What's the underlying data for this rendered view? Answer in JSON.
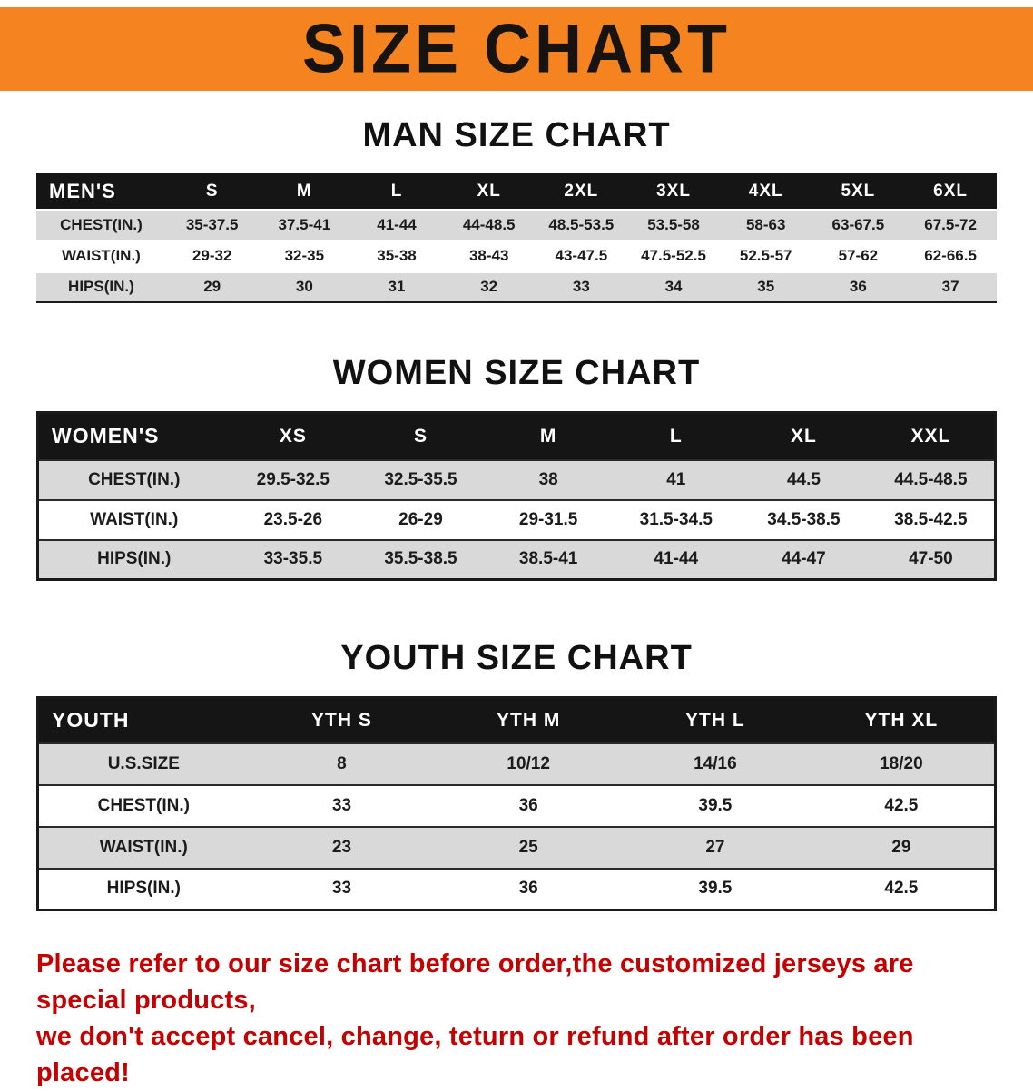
{
  "banner": {
    "title": "SIZE CHART"
  },
  "colors": {
    "banner_orange": "#f5831f",
    "header_black": "#151515",
    "stripe_gray": "#d9d9d9",
    "disclaimer_red": "#c40000"
  },
  "sections": [
    {
      "heading": "MAN SIZE CHART",
      "table": {
        "header": [
          "MEN'S",
          "S",
          "M",
          "L",
          "XL",
          "2XL",
          "3XL",
          "4XL",
          "5XL",
          "6XL"
        ],
        "rows": [
          [
            "CHEST(IN.)",
            "35-37.5",
            "37.5-41",
            "41-44",
            "44-48.5",
            "48.5-53.5",
            "53.5-58",
            "58-63",
            "63-67.5",
            "67.5-72"
          ],
          [
            "WAIST(IN.)",
            "29-32",
            "32-35",
            "35-38",
            "38-43",
            "43-47.5",
            "47.5-52.5",
            "52.5-57",
            "57-62",
            "62-66.5"
          ],
          [
            "HIPS(IN.)",
            "29",
            "30",
            "31",
            "32",
            "33",
            "34",
            "35",
            "36",
            "37"
          ]
        ]
      }
    },
    {
      "heading": "WOMEN SIZE CHART",
      "table": {
        "header": [
          "WOMEN'S",
          "XS",
          "S",
          "M",
          "L",
          "XL",
          "XXL"
        ],
        "rows": [
          [
            "CHEST(IN.)",
            "29.5-32.5",
            "32.5-35.5",
            "38",
            "41",
            "44.5",
            "44.5-48.5"
          ],
          [
            "WAIST(IN.)",
            "23.5-26",
            "26-29",
            "29-31.5",
            "31.5-34.5",
            "34.5-38.5",
            "38.5-42.5"
          ],
          [
            "HIPS(IN.)",
            "33-35.5",
            "35.5-38.5",
            "38.5-41",
            "41-44",
            "44-47",
            "47-50"
          ]
        ]
      }
    },
    {
      "heading": "YOUTH SIZE CHART",
      "table": {
        "header": [
          "YOUTH",
          "YTH S",
          "YTH M",
          "YTH L",
          "YTH XL"
        ],
        "rows": [
          [
            "U.S.SIZE",
            "8",
            "10/12",
            "14/16",
            "18/20"
          ],
          [
            "CHEST(IN.)",
            "33",
            "36",
            "39.5",
            "42.5"
          ],
          [
            "WAIST(IN.)",
            "23",
            "25",
            "27",
            "29"
          ],
          [
            "HIPS(IN.)",
            "33",
            "36",
            "39.5",
            "42.5"
          ]
        ]
      }
    }
  ],
  "footer": {
    "line1": "Please refer to our size chart before order,the customized jerseys are special products,",
    "line2": "we don't accept cancel, change, teturn or refund after order has been placed!"
  }
}
